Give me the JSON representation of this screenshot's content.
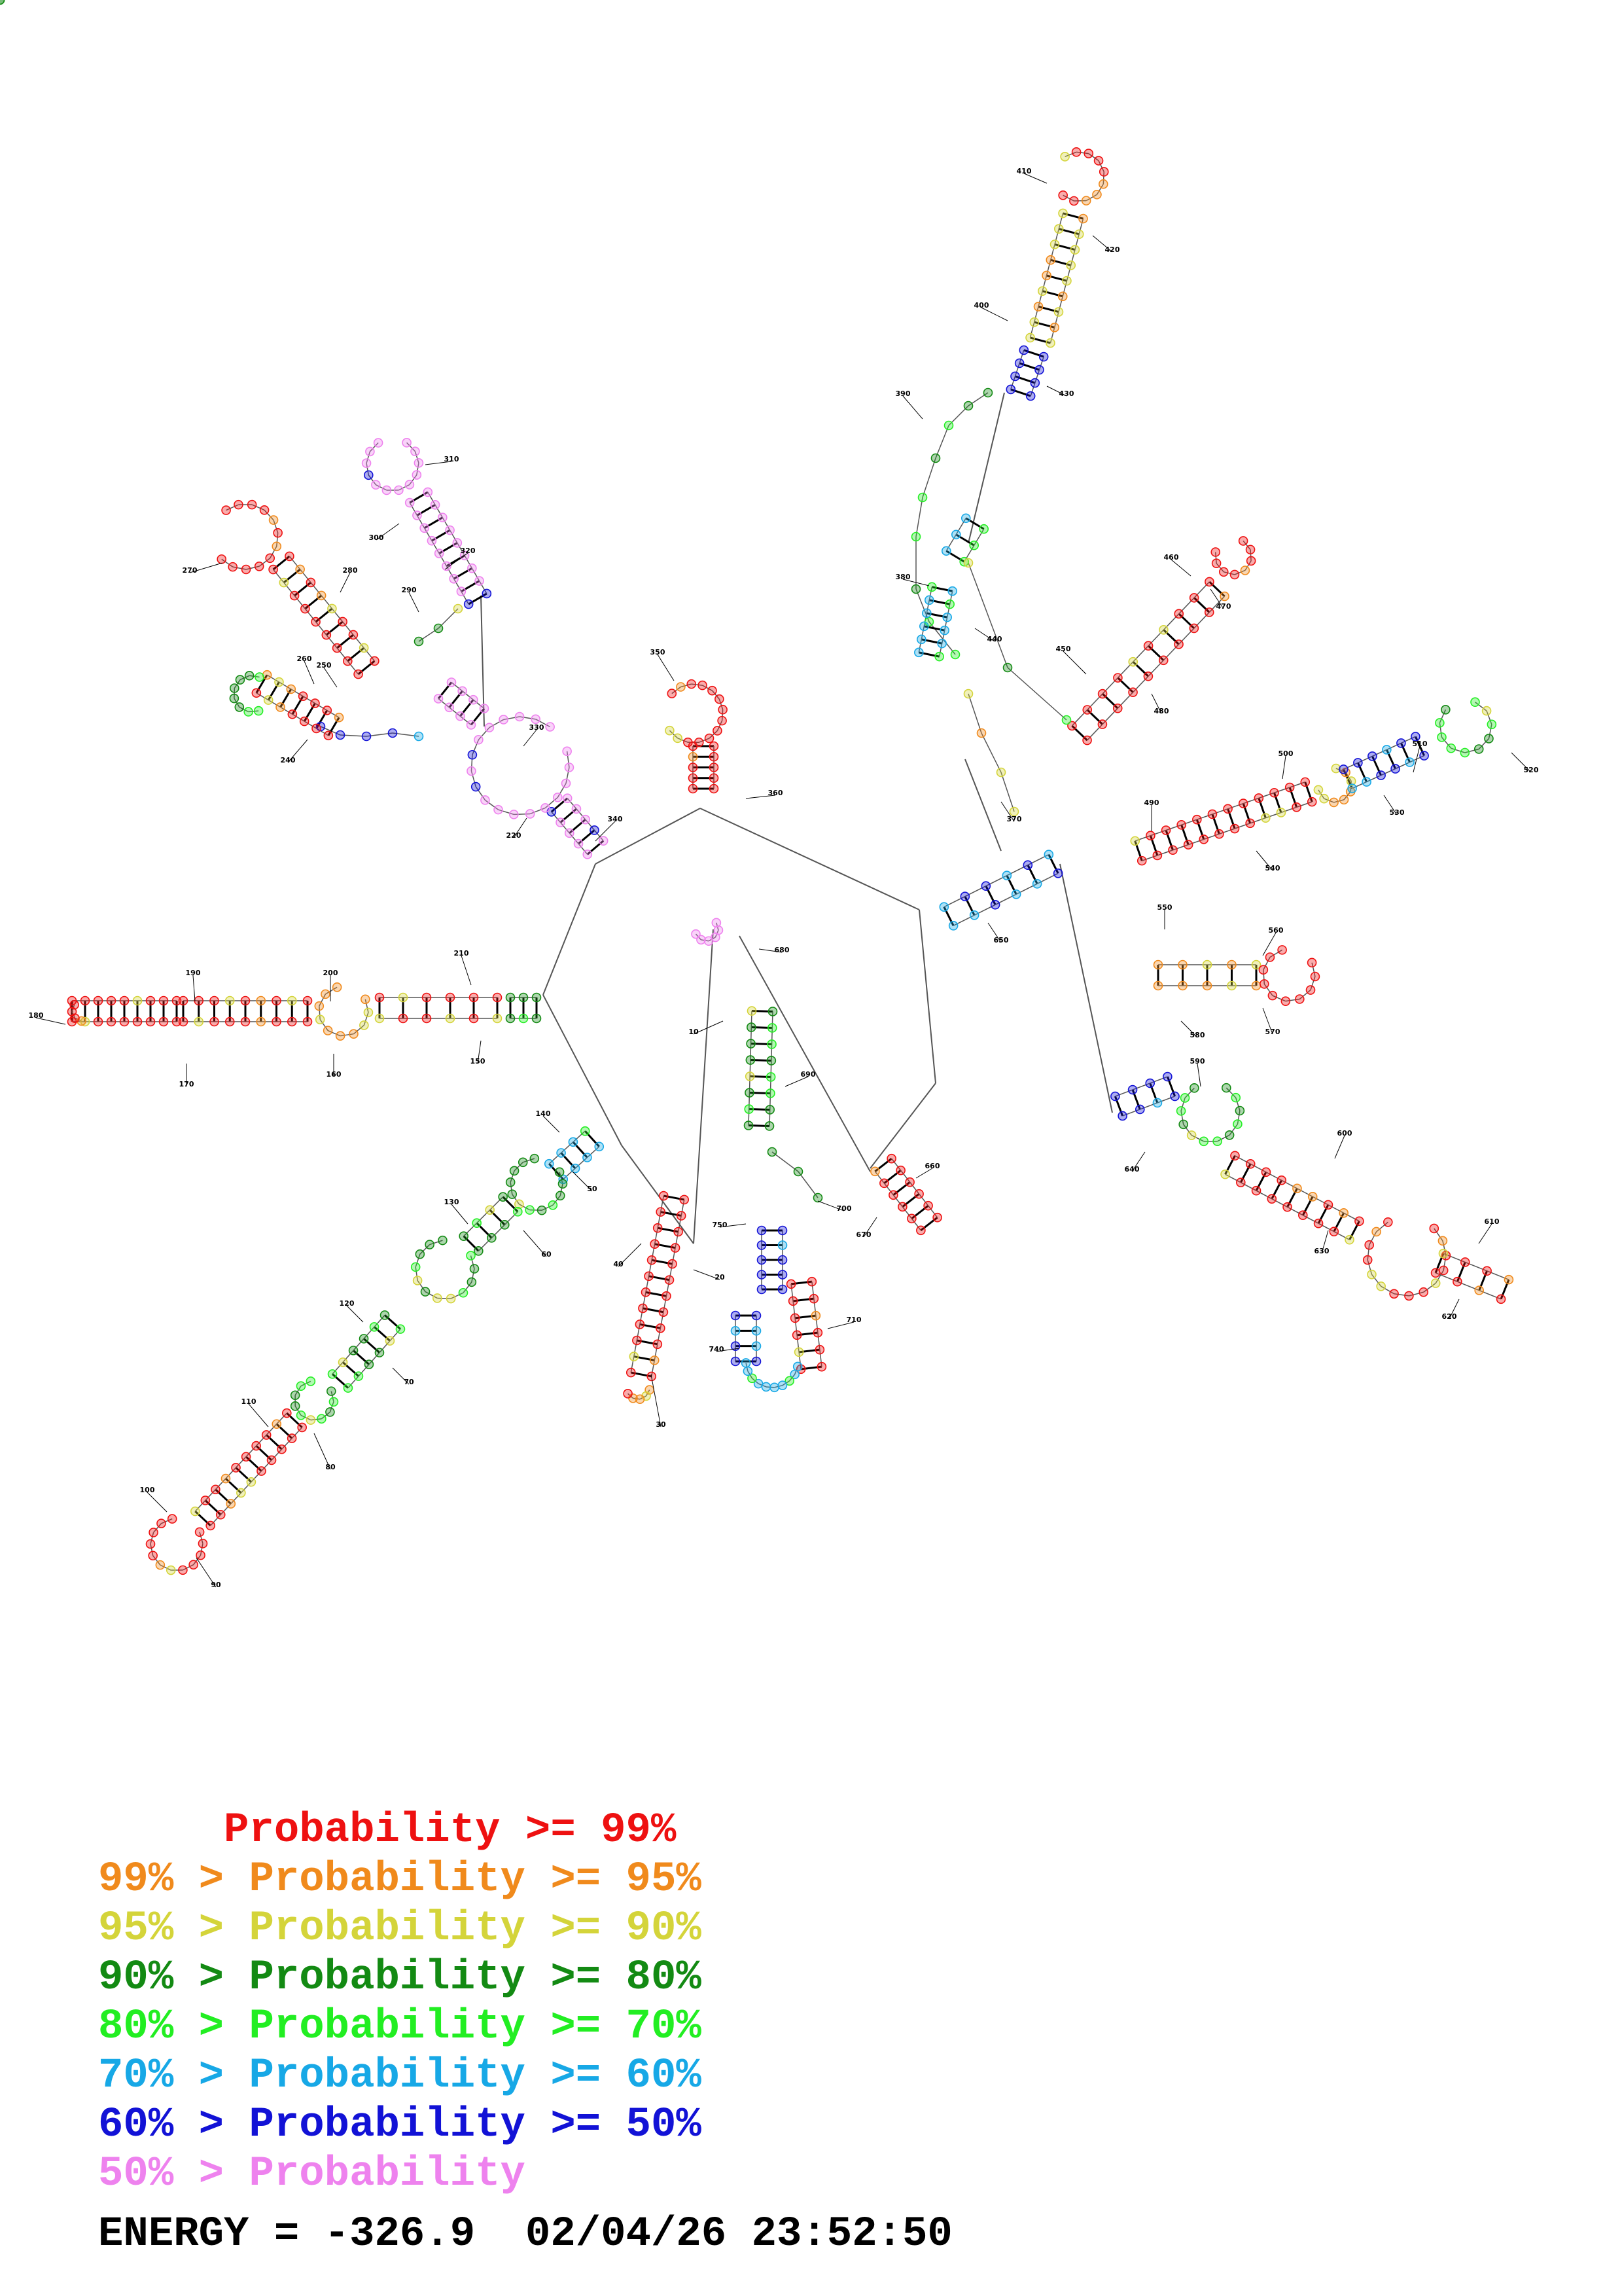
{
  "structure": {
    "nucleotide_labels": [
      "10",
      "20",
      "30",
      "40",
      "50",
      "60",
      "70",
      "80",
      "90",
      "100",
      "110",
      "120",
      "130",
      "140",
      "150",
      "160",
      "170",
      "180",
      "190",
      "200",
      "210",
      "220",
      "240",
      "250",
      "260",
      "270",
      "280",
      "290",
      "300",
      "310",
      "320",
      "330",
      "340",
      "350",
      "360",
      "370",
      "380",
      "390",
      "400",
      "410",
      "420",
      "430",
      "440",
      "450",
      "460",
      "470",
      "480",
      "490",
      "500",
      "510",
      "520",
      "530",
      "540",
      "550",
      "560",
      "570",
      "580",
      "590",
      "600",
      "610",
      "620",
      "630",
      "640",
      "650",
      "660",
      "670",
      "680",
      "690",
      "700",
      "710",
      "740",
      "750"
    ]
  },
  "colors": {
    "p99": "#ee1111",
    "p95": "#f08a1c",
    "p90": "#d4d43a",
    "p80": "#138a13",
    "p70": "#22ee22",
    "p60": "#17a8e6",
    "p50": "#1212d6",
    "plow": "#ee82ee"
  },
  "legend": [
    {
      "prefix": "     ",
      "text": "Probability >= 99%",
      "color": "#ee1111"
    },
    {
      "prefix": "99% > ",
      "text": "Probability >= 95%",
      "color": "#f08a1c"
    },
    {
      "prefix": "95% > ",
      "text": "Probability >= 90%",
      "color": "#d4d43a"
    },
    {
      "prefix": "90% > ",
      "text": "Probability >= 80%",
      "color": "#138a13"
    },
    {
      "prefix": "80% > ",
      "text": "Probability >= 70%",
      "color": "#22ee22"
    },
    {
      "prefix": "70% > ",
      "text": "Probability >= 60%",
      "color": "#17a8e6"
    },
    {
      "prefix": "60% > ",
      "text": "Probability >= 50%",
      "color": "#1212d6"
    },
    {
      "prefix": "50% > ",
      "text": "Probability",
      "color": "#ee82ee"
    }
  ],
  "footer": {
    "energy": "ENERGY = -326.9",
    "timestamp": "02/04/26 23:52:50"
  }
}
